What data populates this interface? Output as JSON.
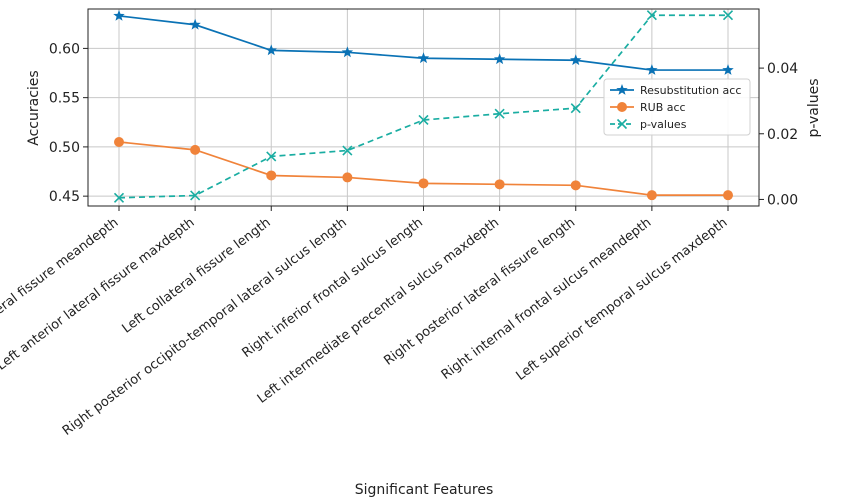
{
  "chart_data": {
    "type": "line",
    "xlabel": "Significant Features",
    "ylabel": "Accuracies",
    "y2label": "p-values",
    "categories": [
      "Left anterior lateral fissure meandepth",
      "Left anterior lateral fissure maxdepth",
      "Left collateral fissure length",
      "Right posterior occipito-temporal lateral sulcus length",
      "Right inferior frontal sulcus length",
      "Left intermediate precentral sulcus maxdepth",
      "Right posterior lateral fissure length",
      "Right internal frontal sulcus meandepth",
      "Left superior temporal sulcus maxdepth"
    ],
    "ylim": [
      0.44,
      0.64
    ],
    "y2lim": [
      -0.002,
      0.058
    ],
    "yticks": [
      "0.45",
      "0.50",
      "0.55",
      "0.60"
    ],
    "y2ticks": [
      "0.00",
      "0.02",
      "0.04"
    ],
    "grid": true,
    "legend_position": "center-right",
    "series": [
      {
        "name": "Resubstitution acc",
        "axis": "left",
        "color": "#0a72b5",
        "marker": "star",
        "linestyle": "solid",
        "values": [
          0.633,
          0.624,
          0.598,
          0.596,
          0.59,
          0.589,
          0.588,
          0.578,
          0.578
        ]
      },
      {
        "name": "RUB acc",
        "axis": "left",
        "color": "#f0833a",
        "marker": "circle",
        "linestyle": "solid",
        "values": [
          0.505,
          0.497,
          0.471,
          0.469,
          0.463,
          0.462,
          0.461,
          0.451,
          0.451
        ]
      },
      {
        "name": "p-values",
        "axis": "right",
        "color": "#1aada2",
        "marker": "x",
        "linestyle": "dashed",
        "values": [
          0.0005,
          0.0012,
          0.0131,
          0.0149,
          0.0242,
          0.0261,
          0.0278,
          0.0561,
          0.0561
        ]
      }
    ]
  }
}
